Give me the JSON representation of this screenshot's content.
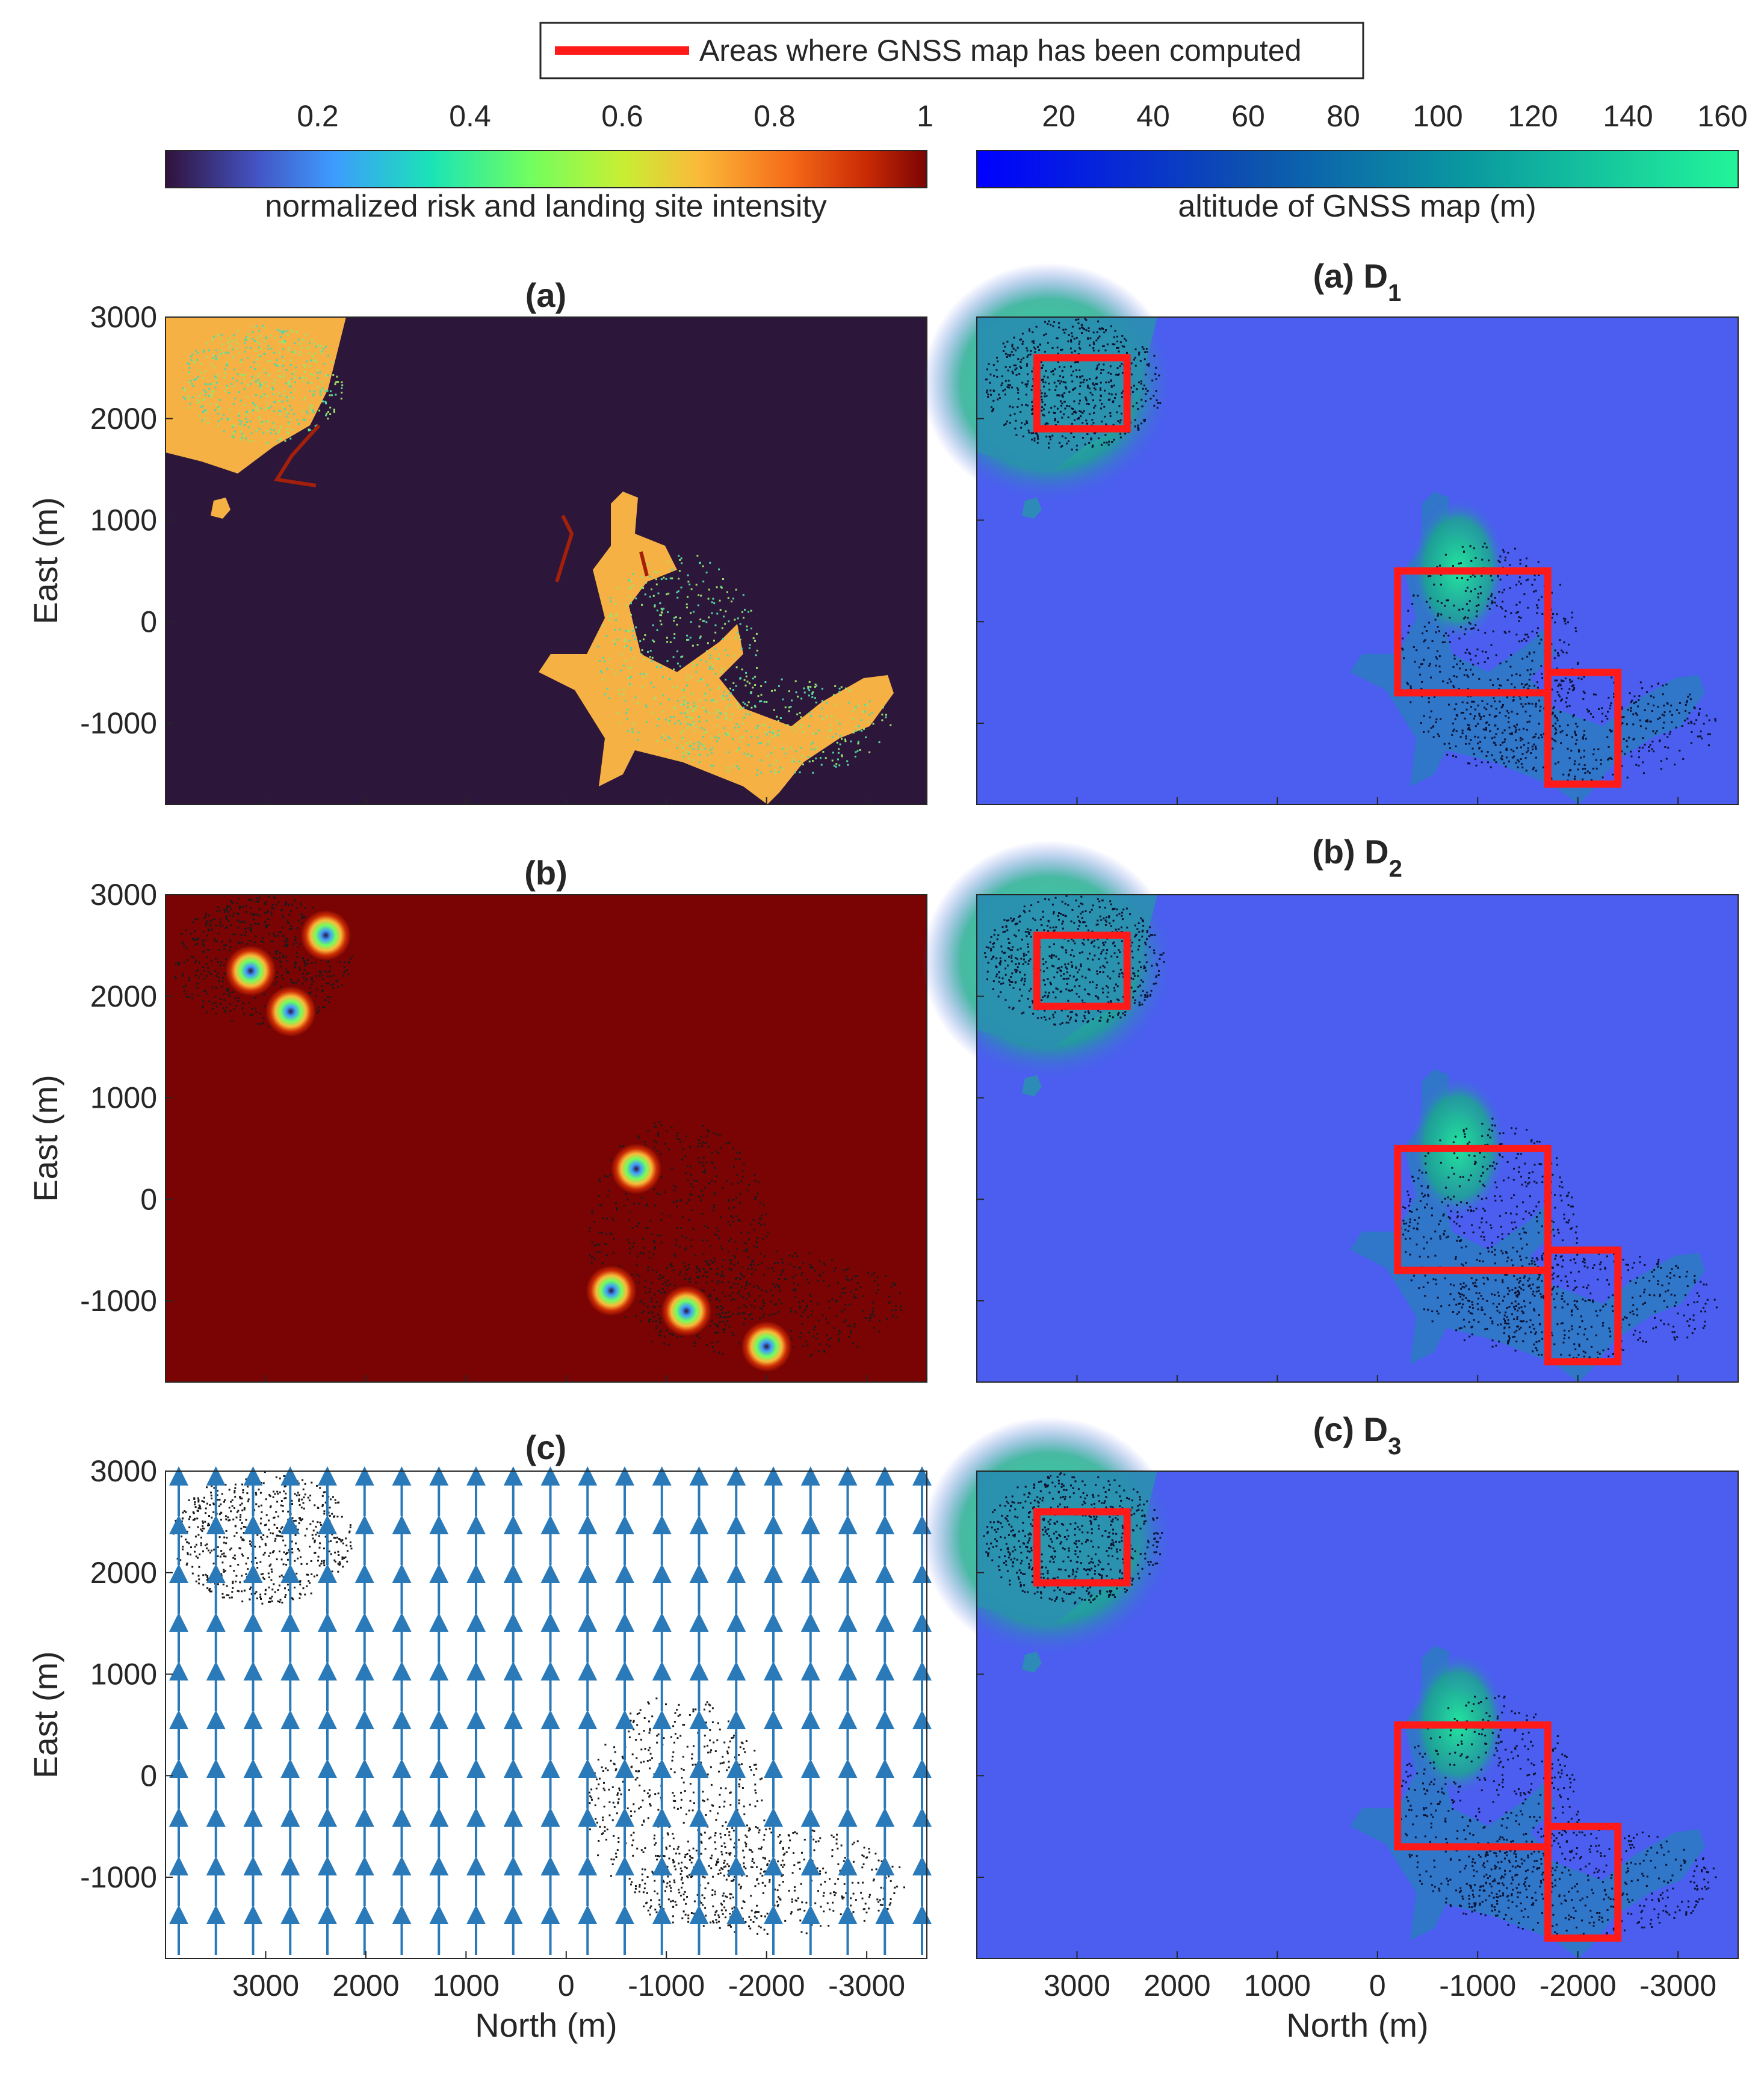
{
  "legend": {
    "label": "Areas where GNSS map has been computed",
    "color": "#ff1a1a"
  },
  "colorbars": [
    {
      "label": "normalized risk and landing site intensity",
      "ticks": [
        "0.2",
        "0.4",
        "0.6",
        "0.8",
        "1"
      ],
      "range": [
        0,
        1
      ],
      "colormap": "turbo"
    },
    {
      "label": "altitude of GNSS map (m)",
      "ticks": [
        "20",
        "40",
        "60",
        "80",
        "100",
        "120",
        "140",
        "160"
      ],
      "range": [
        0,
        160
      ],
      "colormap": "blue-to-green"
    }
  ],
  "axes": {
    "xlabel": "North (m)",
    "ylabel": "East (m)",
    "xticks": [
      "3000",
      "2000",
      "1000",
      "0",
      "-1000",
      "-2000",
      "-3000"
    ],
    "yticks": [
      "3000",
      "2000",
      "1000",
      "0",
      "-1000"
    ],
    "xlim": [
      4000,
      -3600
    ],
    "ylim": [
      -1800,
      3000
    ],
    "x_direction": "reversed"
  },
  "panels": {
    "left": [
      {
        "title": "(a)",
        "kind": "risk-map"
      },
      {
        "title": "(b)",
        "kind": "landing-site-intensity"
      },
      {
        "title": "(c)",
        "kind": "wind-field"
      }
    ],
    "right": [
      {
        "title": "(a) D",
        "subscript": "1"
      },
      {
        "title": "(b) D",
        "subscript": "2"
      },
      {
        "title": "(c) D",
        "subscript": "3"
      }
    ]
  },
  "chart_data": [
    {
      "type": "heatmap",
      "title": "(a)",
      "xlabel": "",
      "ylabel": "East (m)",
      "colors": {
        "background": "#2c1639",
        "land": "#f6b145"
      }
    },
    {
      "type": "heatmap",
      "title": "(b)",
      "xlabel": "",
      "ylabel": "East (m)",
      "landing_sites": [
        {
          "north": 3150,
          "east": 2250
        },
        {
          "north": 2750,
          "east": 1850
        },
        {
          "north": 2400,
          "east": 2600
        },
        {
          "north": -700,
          "east": 300
        },
        {
          "north": -450,
          "east": -900
        },
        {
          "north": -1200,
          "east": -1100
        },
        {
          "north": -2000,
          "east": -1450
        }
      ],
      "colors": {
        "background": "#7a0403"
      }
    },
    {
      "type": "quiver",
      "title": "(c)",
      "xlabel": "North (m)",
      "ylabel": "East (m)",
      "direction": "north-to-east (up)",
      "arrow_color": "#1f77b4"
    },
    {
      "type": "heatmap",
      "title": "(a) D1",
      "computed_areas": [
        {
          "north": [
            2500,
            3400
          ],
          "east": [
            1900,
            2600
          ]
        },
        {
          "north": [
            -200,
            -1700
          ],
          "east": [
            -700,
            500
          ]
        },
        {
          "north": [
            -1700,
            -2400
          ],
          "east": [
            -1600,
            -500
          ]
        }
      ]
    },
    {
      "type": "heatmap",
      "title": "(b) D2",
      "computed_areas": [
        {
          "north": [
            2500,
            3400
          ],
          "east": [
            1900,
            2600
          ]
        },
        {
          "north": [
            -200,
            -1700
          ],
          "east": [
            -700,
            500
          ]
        },
        {
          "north": [
            -1700,
            -2400
          ],
          "east": [
            -1600,
            -500
          ]
        }
      ]
    },
    {
      "type": "heatmap",
      "title": "(c) D3",
      "computed_areas": [
        {
          "north": [
            2500,
            3400
          ],
          "east": [
            1900,
            2600
          ]
        },
        {
          "north": [
            -200,
            -1700
          ],
          "east": [
            -700,
            500
          ]
        },
        {
          "north": [
            -1700,
            -2400
          ],
          "east": [
            -1600,
            -500
          ]
        }
      ]
    }
  ]
}
